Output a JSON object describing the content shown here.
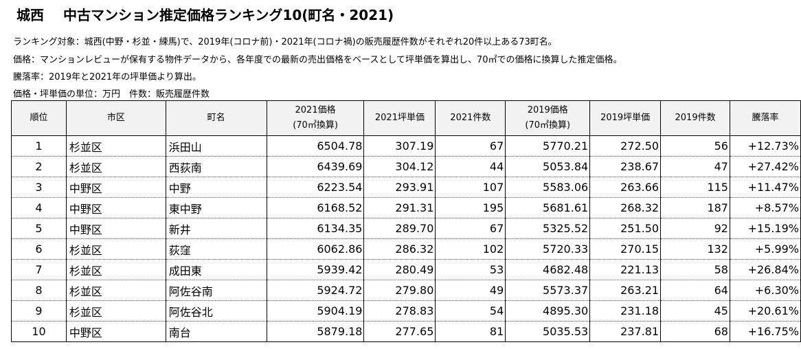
{
  "title_region": "城西",
  "title_main": "中古マンション推定価格ランキング10(町名・2021)",
  "notes": [
    "ランキング対象：城西(中野・杉並・練馬)で、2019年(コロナ前)・2021年(コロナ禍)の販売履歴件数がそれぞれ20件以上ある73町名。",
    "価格：マンションレビューが保有する物件データから、各年度での最新の売出価格をベースとして坪単価を算出し、70㎡での価格に換算した推定価格。",
    "騰落率：2019年と2021年の坪単価より算出。",
    "価格・坪単価の単位：万円　件数：販売履歴件数"
  ],
  "table": {
    "headers": {
      "rank": "順位",
      "ward": "市区",
      "town": "町名",
      "price2021_line1": "2021価格",
      "price2021_line2": "(70㎡換算)",
      "tsubo2021": "2021坪単価",
      "count2021": "2021件数",
      "price2019_line1": "2019価格",
      "price2019_line2": "(70㎡換算)",
      "tsubo2019": "2019坪単価",
      "count2019": "2019件数",
      "change": "騰落率"
    },
    "rows": [
      {
        "rank": "1",
        "ward": "杉並区",
        "town": "浜田山",
        "price2021": "6504.78",
        "tsubo2021": "307.19",
        "count2021": "67",
        "price2019": "5770.21",
        "tsubo2019": "272.50",
        "count2019": "56",
        "change": "+12.73%"
      },
      {
        "rank": "2",
        "ward": "杉並区",
        "town": "西荻南",
        "price2021": "6439.69",
        "tsubo2021": "304.12",
        "count2021": "44",
        "price2019": "5053.84",
        "tsubo2019": "238.67",
        "count2019": "47",
        "change": "+27.42%"
      },
      {
        "rank": "3",
        "ward": "中野区",
        "town": "中野",
        "price2021": "6223.54",
        "tsubo2021": "293.91",
        "count2021": "107",
        "price2019": "5583.06",
        "tsubo2019": "263.66",
        "count2019": "115",
        "change": "+11.47%"
      },
      {
        "rank": "4",
        "ward": "中野区",
        "town": "東中野",
        "price2021": "6168.52",
        "tsubo2021": "291.31",
        "count2021": "195",
        "price2019": "5681.61",
        "tsubo2019": "268.32",
        "count2019": "187",
        "change": "+8.57%"
      },
      {
        "rank": "5",
        "ward": "中野区",
        "town": "新井",
        "price2021": "6134.35",
        "tsubo2021": "289.70",
        "count2021": "67",
        "price2019": "5325.52",
        "tsubo2019": "251.50",
        "count2019": "92",
        "change": "+15.19%"
      },
      {
        "rank": "6",
        "ward": "杉並区",
        "town": "荻窪",
        "price2021": "6062.86",
        "tsubo2021": "286.32",
        "count2021": "102",
        "price2019": "5720.33",
        "tsubo2019": "270.15",
        "count2019": "132",
        "change": "+5.99%"
      },
      {
        "rank": "7",
        "ward": "杉並区",
        "town": "成田東",
        "price2021": "5939.42",
        "tsubo2021": "280.49",
        "count2021": "53",
        "price2019": "4682.48",
        "tsubo2019": "221.13",
        "count2019": "58",
        "change": "+26.84%"
      },
      {
        "rank": "8",
        "ward": "杉並区",
        "town": "阿佐谷南",
        "price2021": "5924.72",
        "tsubo2021": "279.80",
        "count2021": "49",
        "price2019": "5573.37",
        "tsubo2019": "263.21",
        "count2019": "64",
        "change": "+6.30%"
      },
      {
        "rank": "9",
        "ward": "杉並区",
        "town": "阿佐谷北",
        "price2021": "5904.19",
        "tsubo2021": "278.83",
        "count2021": "54",
        "price2019": "4895.30",
        "tsubo2019": "231.18",
        "count2019": "45",
        "change": "+20.61%"
      },
      {
        "rank": "10",
        "ward": "中野区",
        "town": "南台",
        "price2021": "5879.18",
        "tsubo2021": "277.65",
        "count2021": "81",
        "price2019": "5035.53",
        "tsubo2019": "237.81",
        "count2019": "68",
        "change": "+16.75%"
      }
    ]
  }
}
